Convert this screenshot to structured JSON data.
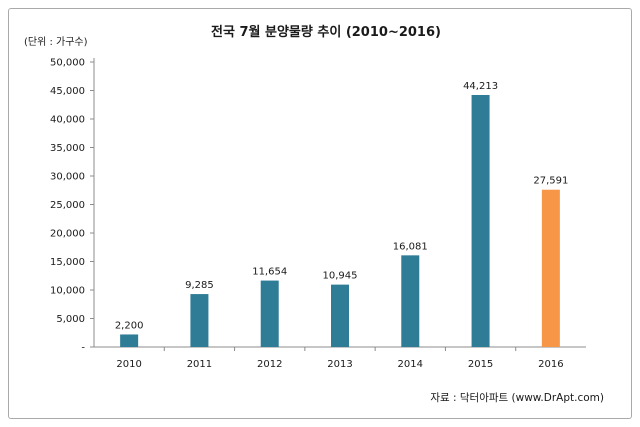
{
  "chart_data": {
    "type": "bar",
    "title": "전국 7월 분양물량 추이 (2010~2016)",
    "unit_label": "(단위 : 가구수)",
    "source": "자료 : 닥터아파트 (www.DrApt.com)",
    "categories": [
      "2010",
      "2011",
      "2012",
      "2013",
      "2014",
      "2015",
      "2016"
    ],
    "values": [
      2200,
      9285,
      11654,
      10945,
      16081,
      44213,
      27591
    ],
    "value_labels": [
      "2,200",
      "9,285",
      "11,654",
      "10,945",
      "16,081",
      "44,213",
      "27,591"
    ],
    "y_ticks": [
      "-",
      "5,000",
      "10,000",
      "15,000",
      "20,000",
      "25,000",
      "30,000",
      "35,000",
      "40,000",
      "45,000",
      "50,000"
    ],
    "ylim": [
      0,
      50000
    ],
    "grid": false,
    "bar_color": "#2e7c96",
    "highlight_color": "#f79646",
    "highlight_index": 6
  }
}
